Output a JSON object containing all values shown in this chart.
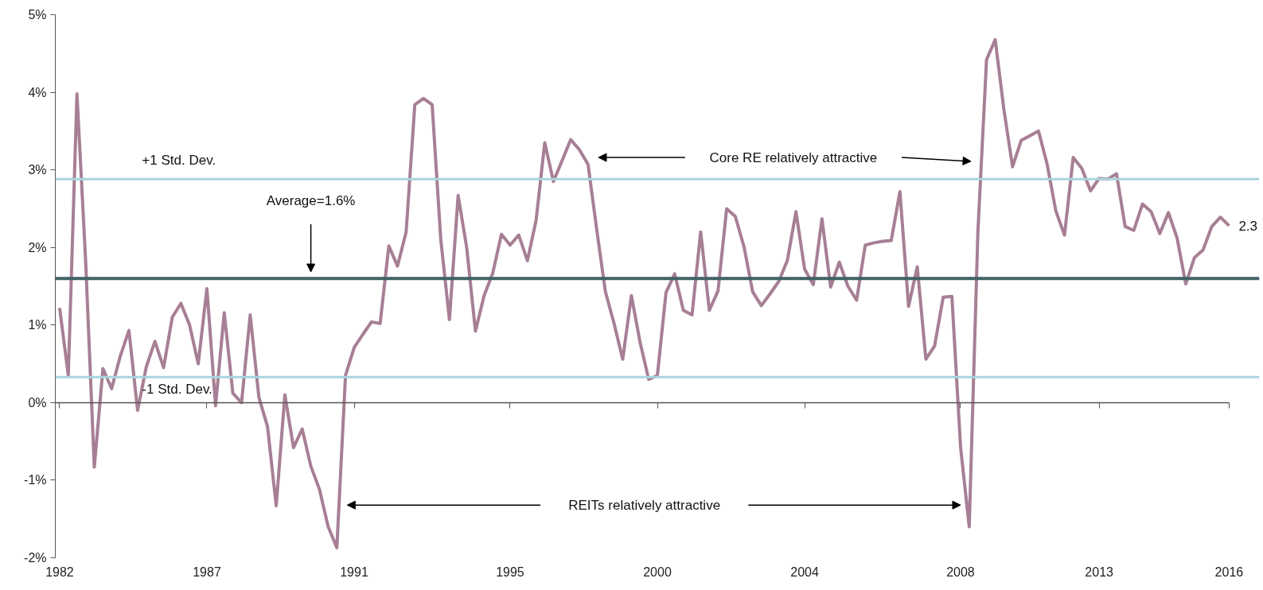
{
  "chart_data": {
    "type": "line",
    "categories": [
      "1982",
      null,
      null,
      null,
      null,
      null,
      null,
      null,
      null,
      null,
      null,
      null,
      null,
      null,
      null,
      null,
      null,
      "1987",
      null,
      null,
      null,
      null,
      null,
      null,
      null,
      null,
      null,
      null,
      null,
      null,
      null,
      null,
      null,
      null,
      "1991",
      null,
      null,
      null,
      null,
      null,
      null,
      null,
      null,
      null,
      null,
      null,
      null,
      null,
      null,
      null,
      null,
      null,
      "1995",
      null,
      null,
      null,
      null,
      null,
      null,
      null,
      null,
      null,
      null,
      null,
      null,
      null,
      null,
      null,
      null,
      "2000",
      null,
      null,
      null,
      null,
      null,
      null,
      null,
      null,
      null,
      null,
      null,
      null,
      null,
      null,
      null,
      null,
      "2004",
      null,
      null,
      null,
      null,
      null,
      null,
      null,
      null,
      null,
      null,
      null,
      null,
      null,
      null,
      null,
      null,
      null,
      "2008",
      null,
      null,
      null,
      null,
      null,
      null,
      null,
      null,
      null,
      null,
      null,
      null,
      null,
      null,
      null,
      "2013",
      null,
      null,
      null,
      null,
      null,
      null,
      null,
      null,
      null,
      null,
      null,
      null,
      null,
      null,
      "2016"
    ],
    "series": [
      {
        "color": "#a77f95",
        "values": [
          1.22,
          0.35,
          3.98,
          1.83,
          -0.83,
          0.44,
          0.18,
          0.6,
          0.93,
          -0.1,
          0.46,
          0.79,
          0.45,
          1.1,
          1.28,
          1.0,
          0.5,
          1.47,
          -0.04,
          1.16,
          0.12,
          0.0,
          1.13,
          0.07,
          -0.31,
          -1.33,
          0.1,
          -0.58,
          -0.34,
          -0.82,
          -1.12,
          -1.6,
          -1.87,
          0.35,
          0.71,
          0.88,
          1.04,
          1.02,
          2.02,
          1.76,
          2.2,
          3.84,
          3.92,
          3.84,
          2.1,
          1.07,
          2.67,
          1.99,
          0.92,
          1.38,
          1.67,
          2.17,
          2.03,
          2.16,
          1.83,
          2.35,
          3.35,
          2.85,
          3.12,
          3.39,
          3.26,
          3.07,
          2.23,
          1.43,
          1.02,
          0.56,
          1.38,
          0.78,
          0.3,
          0.35,
          1.42,
          1.66,
          1.19,
          1.13,
          2.2,
          1.19,
          1.44,
          2.5,
          2.4,
          2.01,
          1.43,
          1.25,
          1.4,
          1.56,
          1.83,
          2.46,
          1.72,
          1.52,
          2.37,
          1.49,
          1.81,
          1.5,
          1.32,
          2.03,
          2.06,
          2.08,
          2.09,
          2.72,
          1.24,
          1.75,
          0.56,
          0.73,
          1.36,
          1.37,
          -0.57,
          -1.6,
          2.2,
          4.42,
          4.68,
          3.78,
          3.04,
          3.38,
          3.44,
          3.5,
          3.07,
          2.47,
          2.16,
          3.16,
          3.02,
          2.73,
          2.89,
          2.88,
          2.95,
          2.27,
          2.22,
          2.56,
          2.46,
          2.18,
          2.45,
          2.12,
          1.53,
          1.87,
          1.97,
          2.27,
          2.39,
          2.28
        ]
      }
    ],
    "ylim": [
      -2,
      5
    ],
    "yticks": [
      {
        "value": -2,
        "label": "-2%"
      },
      {
        "value": -1,
        "label": "-1%"
      },
      {
        "value": 0,
        "label": "0%"
      },
      {
        "value": 1,
        "label": "1%"
      },
      {
        "value": 2,
        "label": "2%"
      },
      {
        "value": 3,
        "label": "3%"
      },
      {
        "value": 4,
        "label": "4%"
      },
      {
        "value": 5,
        "label": "5%"
      }
    ],
    "ref_lines": [
      {
        "axis": "y",
        "value": 2.88,
        "label": "+1 Std. Dev.",
        "color": "#a9d5de"
      },
      {
        "axis": "y",
        "value": 0.33,
        "label": "-1 Std. Dev.",
        "color": "#a9d5de"
      },
      {
        "axis": "y",
        "value": 1.6,
        "label": "Average=1.6%",
        "color": "#3f6266"
      }
    ],
    "annotations": [
      "Core RE relatively attractive",
      "REITs relatively attractive",
      {
        "text": "2.3",
        "x": "2016",
        "y": 2.28
      }
    ],
    "marker": "none",
    "line_style": "solid"
  }
}
